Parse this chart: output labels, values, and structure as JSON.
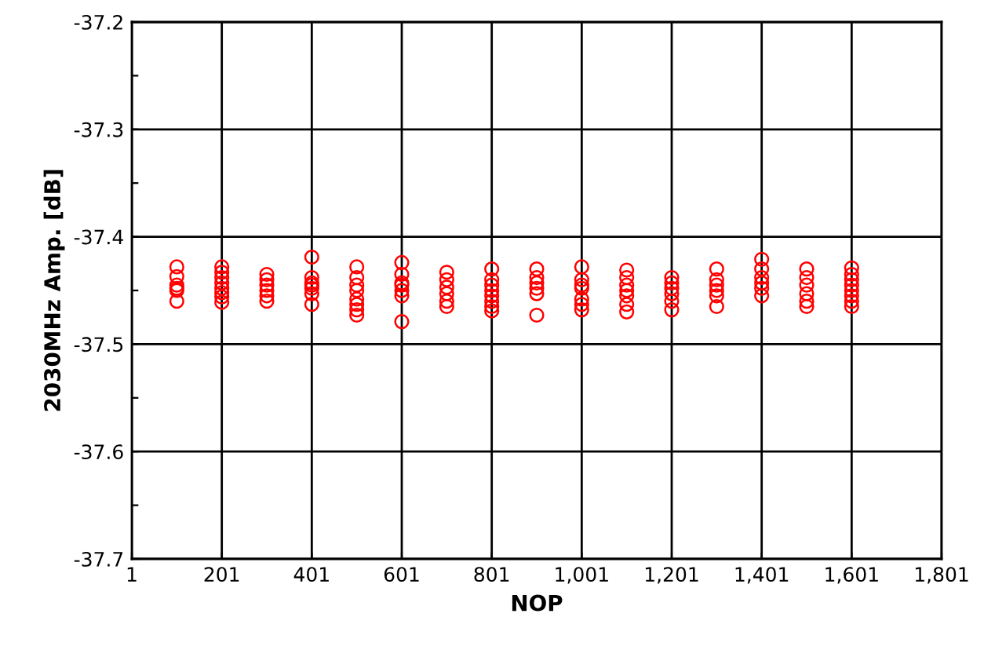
{
  "chart_data": {
    "type": "scatter",
    "xlabel": "NOP",
    "ylabel": "2030MHz Amp. [dB]",
    "marker": "circle",
    "grid": true,
    "xlim": [
      1,
      1801
    ],
    "ylim": [
      -37.7,
      -37.2
    ],
    "xticks": [
      1,
      201,
      401,
      601,
      801,
      {
        "value": 1001,
        "label": "1,001"
      },
      {
        "value": 1201,
        "label": "1,201"
      },
      {
        "value": 1401,
        "label": "1,401"
      },
      {
        "value": 1601,
        "label": "1,601"
      },
      {
        "value": 1801,
        "label": "1,801"
      }
    ],
    "yticks": [
      -37.7,
      {
        "value": -37.65,
        "label": null
      },
      -37.6,
      {
        "value": -37.55,
        "label": null
      },
      -37.5,
      {
        "value": -37.45,
        "label": null
      },
      -37.4,
      {
        "value": -37.35,
        "label": null
      },
      -37.3,
      {
        "value": -37.25,
        "label": null
      },
      -37.2
    ],
    "series": [
      {
        "color": "#ff0000",
        "x": [
          101,
          101,
          101,
          101,
          101,
          101,
          201,
          201,
          201,
          201,
          201,
          201,
          201,
          201,
          301,
          301,
          301,
          301,
          301,
          301,
          401,
          401,
          401,
          401,
          401,
          401,
          401,
          501,
          501,
          501,
          501,
          501,
          501,
          501,
          501,
          601,
          601,
          601,
          601,
          601,
          601,
          601,
          701,
          701,
          701,
          701,
          701,
          701,
          801,
          801,
          801,
          801,
          801,
          801,
          801,
          801,
          901,
          901,
          901,
          901,
          901,
          901,
          1001,
          1001,
          1001,
          1001,
          1001,
          1001,
          1001,
          1101,
          1101,
          1101,
          1101,
          1101,
          1101,
          1101,
          1201,
          1201,
          1201,
          1201,
          1201,
          1201,
          1301,
          1301,
          1301,
          1301,
          1301,
          1301,
          1401,
          1401,
          1401,
          1401,
          1401,
          1401,
          1501,
          1501,
          1501,
          1501,
          1501,
          1501,
          1601,
          1601,
          1601,
          1601,
          1601,
          1601,
          1601,
          1601
        ],
        "values": [
          -37.428,
          -37.437,
          -37.445,
          -37.448,
          -37.45,
          -37.46,
          -37.428,
          -37.433,
          -37.438,
          -37.443,
          -37.448,
          -37.452,
          -37.456,
          -37.461,
          -37.435,
          -37.44,
          -37.445,
          -37.45,
          -37.455,
          -37.46,
          -37.419,
          -37.438,
          -37.443,
          -37.445,
          -37.448,
          -37.453,
          -37.463,
          -37.428,
          -37.438,
          -37.445,
          -37.45,
          -37.458,
          -37.463,
          -37.468,
          -37.473,
          -37.424,
          -37.435,
          -37.443,
          -37.445,
          -37.45,
          -37.455,
          -37.479,
          -37.433,
          -37.44,
          -37.447,
          -37.453,
          -37.46,
          -37.465,
          -37.43,
          -37.44,
          -37.445,
          -37.45,
          -37.455,
          -37.46,
          -37.465,
          -37.469,
          -37.43,
          -37.438,
          -37.443,
          -37.448,
          -37.453,
          -37.473,
          -37.428,
          -37.44,
          -37.445,
          -37.448,
          -37.458,
          -37.463,
          -37.468,
          -37.431,
          -37.438,
          -37.445,
          -37.45,
          -37.455,
          -37.463,
          -37.47,
          -37.438,
          -37.443,
          -37.448,
          -37.453,
          -37.46,
          -37.468,
          -37.43,
          -37.44,
          -37.445,
          -37.45,
          -37.455,
          -37.465,
          -37.421,
          -37.43,
          -37.438,
          -37.443,
          -37.448,
          -37.455,
          -37.43,
          -37.438,
          -37.445,
          -37.453,
          -37.46,
          -37.465,
          -37.429,
          -37.435,
          -37.44,
          -37.445,
          -37.45,
          -37.455,
          -37.46,
          -37.465
        ]
      }
    ]
  }
}
